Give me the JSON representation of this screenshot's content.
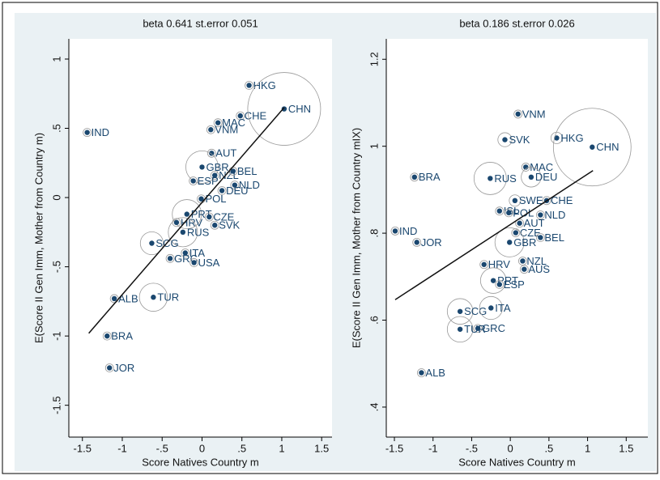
{
  "chart_data": [
    {
      "type": "scatter",
      "title": "beta 0.641 st.error 0.051",
      "xlabel": "Score Natives Country m",
      "ylabel": "E(Score II Gen Imm, Mother from Country m)",
      "xlim": [
        -1.67,
        1.63
      ],
      "ylim": [
        -1.73,
        1.146
      ],
      "xticks": [
        -1.5,
        -1,
        {
          "value": -0.5,
          "label": "-.5"
        },
        0,
        {
          "value": 0.5,
          "label": ".5"
        },
        1,
        1.5
      ],
      "yticks": [
        -1.5,
        -1,
        {
          "value": -0.5,
          "label": "-.5"
        },
        0,
        {
          "value": 0.5,
          "label": ".5"
        },
        1
      ],
      "color": "#1a476f",
      "labels": [
        "HKG",
        "CHE",
        "CHN",
        "MAC",
        "VNM",
        "IND",
        "AUT",
        "GBR",
        "NZL",
        "BEL",
        "ESP",
        "NLD",
        "DEU",
        "POL",
        "PRT",
        "CZE",
        "HRV",
        "SVK",
        "RUS",
        "SCG",
        "ITA",
        "GRC",
        "USA",
        "ALB",
        "TUR",
        "BRA",
        "JOR"
      ],
      "x": [
        0.59,
        0.48,
        1.03,
        0.2,
        0.11,
        -1.44,
        0.12,
        0,
        0.16,
        0.39,
        -0.11,
        0.41,
        0.25,
        -0.01,
        -0.19,
        0.09,
        -0.32,
        0.16,
        -0.24,
        -0.63,
        -0.21,
        -0.4,
        -0.1,
        -1.1,
        -0.61,
        -1.19,
        -1.16
      ],
      "y": [
        0.81,
        0.59,
        0.64,
        0.54,
        0.49,
        0.47,
        0.32,
        0.22,
        0.16,
        0.19,
        0.12,
        0.09,
        0.05,
        -0.01,
        -0.12,
        -0.14,
        -0.18,
        -0.2,
        -0.25,
        -0.33,
        -0.4,
        -0.44,
        -0.47,
        -0.73,
        -0.72,
        -1.0,
        -1.23
      ],
      "sizes": [
        1,
        1,
        81,
        1,
        1,
        1,
        1,
        16,
        1,
        1,
        1,
        1,
        1,
        1,
        13,
        1,
        1,
        1,
        13,
        8,
        1,
        1,
        1,
        1,
        12,
        1,
        1
      ],
      "fit": {
        "x": [
          -1.42,
          1.03
        ],
        "y": [
          -0.98,
          0.65
        ]
      }
    },
    {
      "type": "scatter",
      "title": "beta 0.186 st.error 0.026",
      "xlabel": "Score Natives Country m",
      "ylabel": "E(Score II Gen Imm, Mother from Country mIX)",
      "xlim": [
        -1.605,
        1.78
      ],
      "ylim": [
        0.331,
        1.247
      ],
      "xticks": [
        -1.5,
        -1,
        {
          "value": -0.5,
          "label": "-.5"
        },
        0,
        {
          "value": 0.5,
          "label": ".5"
        },
        1,
        1.5
      ],
      "yticks": [
        {
          "value": 0.4,
          "label": ".4"
        },
        {
          "value": 0.6,
          "label": ".6"
        },
        {
          "value": 0.8,
          "label": ".8"
        },
        1,
        1.2
      ],
      "color": "#1a476f",
      "labels": [
        "VNM",
        "SVK",
        "HKG",
        "CHN",
        "BRA",
        "RUS",
        "MAC",
        "DEU",
        "SWE",
        "CHE",
        "ISL",
        "POL",
        "NLD",
        "IND",
        "JOR",
        "AUT",
        "CZE",
        "BEL",
        "GBR",
        "HRV",
        "NZL",
        "AUS",
        "PRT",
        "ESP",
        "SCG",
        "ITA",
        "GRC",
        "TUR",
        "ALB"
      ],
      "x": [
        0.1,
        -0.07,
        0.6,
        1.06,
        -1.24,
        -0.26,
        0.2,
        0.27,
        0.06,
        0.47,
        -0.14,
        -0.02,
        0.39,
        -1.49,
        -1.21,
        0.12,
        0.07,
        0.39,
        -0.01,
        -0.34,
        0.16,
        0.18,
        -0.22,
        -0.14,
        -0.65,
        -0.25,
        -0.42,
        -0.65,
        -1.15
      ],
      "y": [
        1.074,
        1.015,
        1.019,
        0.998,
        0.929,
        0.926,
        0.952,
        0.929,
        0.875,
        0.875,
        0.851,
        0.847,
        0.842,
        0.805,
        0.779,
        0.823,
        0.801,
        0.79,
        0.779,
        0.728,
        0.736,
        0.717,
        0.691,
        0.682,
        0.62,
        0.628,
        0.581,
        0.579,
        0.479
      ],
      "sizes": [
        1,
        3,
        2,
        92,
        1,
        16,
        1,
        6,
        2,
        1,
        1,
        1,
        1,
        1,
        1,
        1,
        1,
        1,
        13,
        1,
        1,
        1,
        10,
        1,
        10,
        8,
        1,
        10,
        1
      ],
      "fit": {
        "x": [
          -1.49,
          1.07
        ],
        "y": [
          0.647,
          0.944
        ]
      }
    }
  ]
}
